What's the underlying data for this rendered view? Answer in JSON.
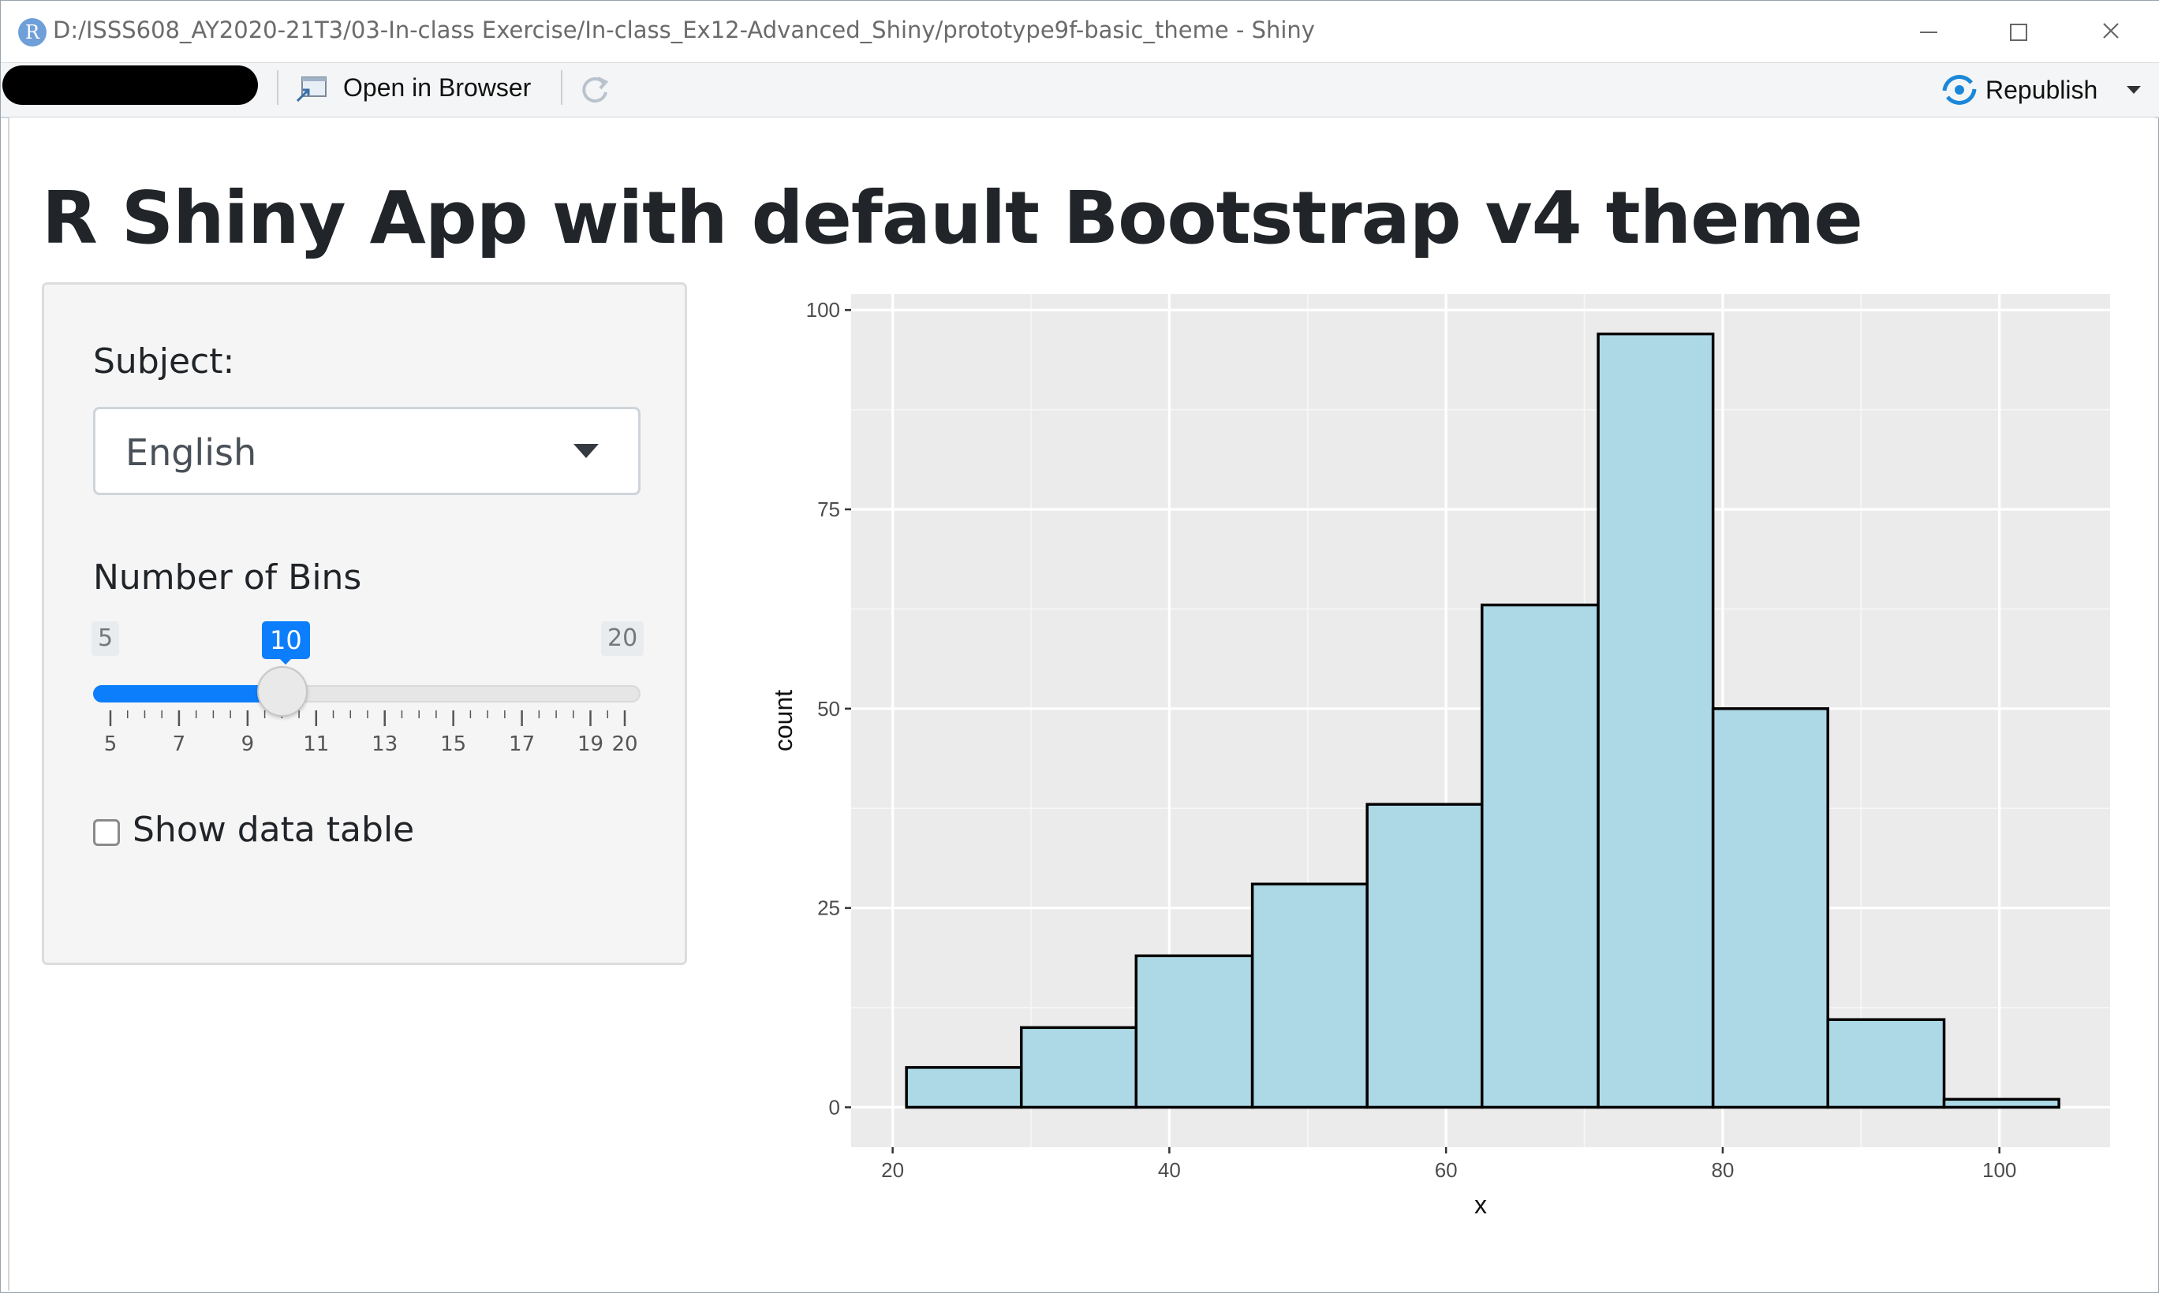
{
  "window": {
    "app_icon_letter": "R",
    "title": "D:/ISSS608_AY2020-21T3/03-In-class Exercise/In-class_Ex12-Advanced_Shiny/prototype9f-basic_theme - Shiny"
  },
  "toolbar": {
    "open_in_browser_label": "Open in Browser",
    "republish_label": "Republish"
  },
  "page": {
    "title": "R Shiny App with default Bootstrap v4 theme"
  },
  "sidebar": {
    "subject_label": "Subject:",
    "subject_selected": "English",
    "bins_label": "Number of Bins",
    "bins_min": "5",
    "bins_max": "20",
    "bins_value": "10",
    "bins_value_numeric": 10,
    "bins_range": [
      5,
      20
    ],
    "tick_labels": [
      "5",
      "7",
      "9",
      "11",
      "13",
      "15",
      "17",
      "19",
      "20"
    ],
    "show_table_label": "Show data table",
    "show_table_checked": false
  },
  "colors": {
    "accent": "#0d7efb",
    "bar_fill": "#add8e6",
    "panel_bg": "#ebebeb"
  },
  "chart_data": {
    "type": "bar",
    "xlabel": "x",
    "ylabel": "count",
    "xlim": [
      17,
      108
    ],
    "ylim": [
      -5,
      102
    ],
    "x_ticks": [
      20,
      40,
      60,
      80,
      100
    ],
    "y_ticks": [
      0,
      25,
      50,
      75,
      100
    ],
    "grid": true,
    "bins": [
      {
        "x0": 21,
        "x1": 29.3,
        "count": 5
      },
      {
        "x0": 29.3,
        "x1": 37.6,
        "count": 10
      },
      {
        "x0": 37.6,
        "x1": 46,
        "count": 19
      },
      {
        "x0": 46,
        "x1": 54.3,
        "count": 28
      },
      {
        "x0": 54.3,
        "x1": 62.6,
        "count": 38
      },
      {
        "x0": 62.6,
        "x1": 71,
        "count": 63
      },
      {
        "x0": 71,
        "x1": 79.3,
        "count": 97
      },
      {
        "x0": 79.3,
        "x1": 87.6,
        "count": 50
      },
      {
        "x0": 87.6,
        "x1": 96,
        "count": 11
      },
      {
        "x0": 96,
        "x1": 104.3,
        "count": 1
      }
    ]
  }
}
